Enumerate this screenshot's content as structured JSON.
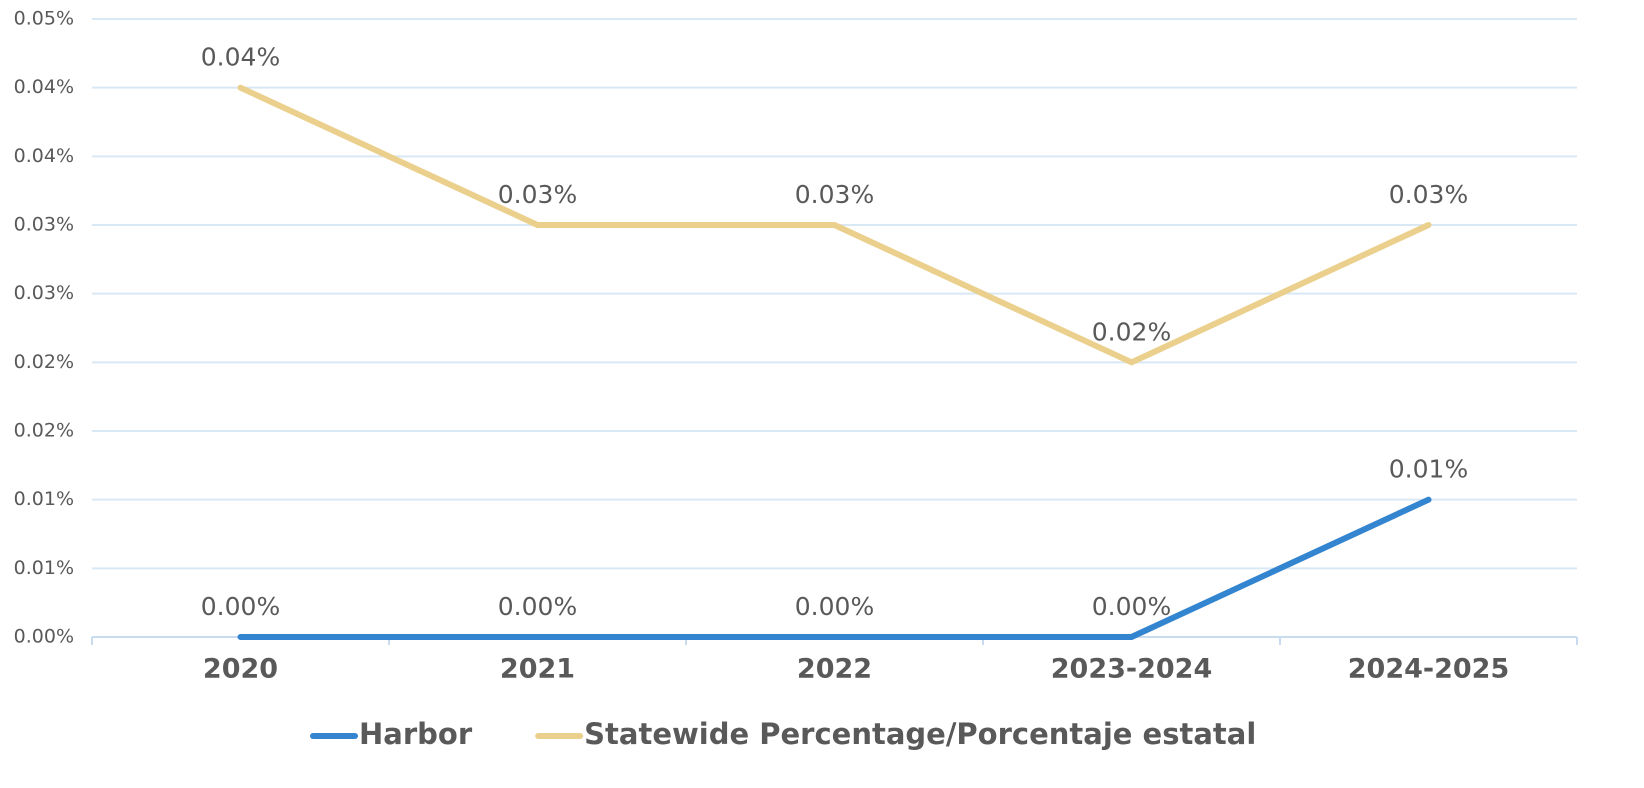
{
  "chart_data": {
    "type": "line",
    "categories": [
      "2020",
      "2021",
      "2022",
      "2023-2024",
      "2024-2025"
    ],
    "series": [
      {
        "name": "Harbor",
        "color": "#3385d0",
        "values": [
          0,
          0,
          0,
          0,
          0.01
        ],
        "value_labels": [
          "0.00%",
          "0.00%",
          "0.00%",
          "0.00%",
          "0.01%"
        ]
      },
      {
        "name": "Statewide Percentage/Porcentaje estatal",
        "color": "#ebd08d",
        "values": [
          0.04,
          0.03,
          0.03,
          0.02,
          0.03
        ],
        "value_labels": [
          "0.04%",
          "0.03%",
          "0.03%",
          "0.02%",
          "0.03%"
        ]
      }
    ],
    "ylim": [
      0,
      0.045
    ],
    "yticks": [
      {
        "value": 0,
        "label": "0.00%"
      },
      {
        "value": 0.005,
        "label": "0.01%"
      },
      {
        "value": 0.01,
        "label": "0.01%"
      },
      {
        "value": 0.015,
        "label": "0.02%"
      },
      {
        "value": 0.02,
        "label": "0.02%"
      },
      {
        "value": 0.025,
        "label": "0.03%"
      },
      {
        "value": 0.03,
        "label": "0.03%"
      },
      {
        "value": 0.035,
        "label": "0.04%"
      },
      {
        "value": 0.04,
        "label": "0.04%"
      },
      {
        "value": 0.045,
        "label": "0.05%"
      }
    ],
    "grid": true,
    "legend": "bottom"
  }
}
